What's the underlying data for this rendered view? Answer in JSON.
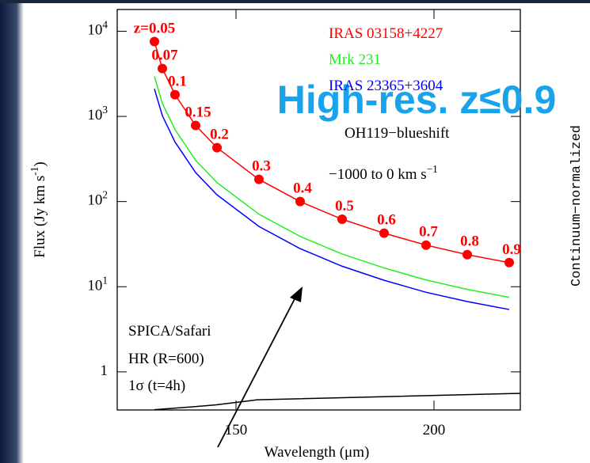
{
  "chart_data": {
    "type": "line",
    "log_y": true,
    "xlabel": "Wavelength (μm)",
    "ylabel": "Flux (Jy km s^{-1})",
    "xlim": [
      120,
      221.8
    ],
    "ylim": [
      0.357,
      18000
    ],
    "xticks": [
      150,
      200
    ],
    "yticks": [
      1,
      {
        "value": 10,
        "label": "10^{1}"
      },
      {
        "value": 100,
        "label": "10^{2}"
      },
      {
        "value": 1000,
        "label": "10^{3}"
      },
      {
        "value": 10000,
        "label": "10^{4}"
      }
    ],
    "x": [
      129.4,
      131.4,
      134.6,
      139.8,
      145.2,
      155.8,
      166.2,
      176.8,
      187.4,
      198,
      208.4,
      219
    ],
    "point_labels": [
      "z=0.05",
      "0.07",
      "0.1",
      "0.15",
      "0.2",
      "0.3",
      "0.4",
      "0.5",
      "0.6",
      "0.7",
      "0.8",
      "0.9"
    ],
    "series": [
      {
        "name": "IRAS 03158+4227",
        "color": "#ff0000",
        "markers": true,
        "values": [
          7560,
          3650,
          1800,
          782,
          429,
          182,
          100,
          62,
          42.5,
          30.8,
          23.8,
          19.2
        ]
      },
      {
        "name": "Mrk 231",
        "color": "#22ee22",
        "markers": false,
        "values": [
          2950,
          1420,
          700,
          305,
          167,
          71,
          39,
          24.2,
          16.6,
          12,
          9.3,
          7.5
        ]
      },
      {
        "name": "IRAS 23365+3604",
        "color": "#0000ff",
        "markers": false,
        "values": [
          2100,
          1020,
          500,
          219,
          120,
          51,
          28,
          17.4,
          11.9,
          8.6,
          6.7,
          5.4
        ]
      }
    ],
    "sensitivity": {
      "color": "#000000",
      "x": [
        129.4,
        139.4,
        145,
        155.4,
        221.8
      ],
      "values": [
        0.36,
        0.39,
        0.41,
        0.47,
        0.56
      ]
    },
    "annotations": [
      "OH119−blueshift",
      "−1000 to 0 km s^{−1}",
      "SPICA/Safari",
      "HR (R=600)",
      "1σ (t=4h)"
    ],
    "overlay_title": "High-res. z≤0.9",
    "side_label": "Continuum−normalized"
  }
}
